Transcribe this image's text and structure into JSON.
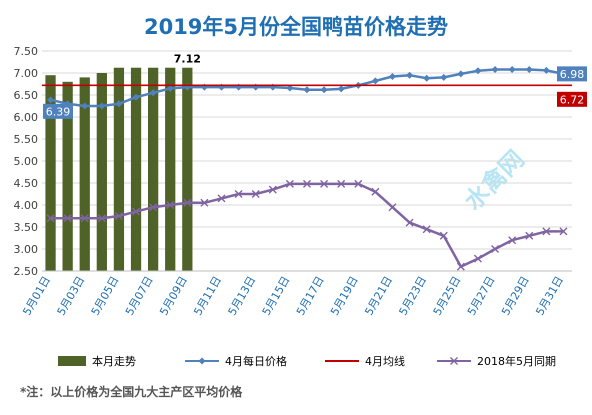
{
  "chart_data": {
    "type": "bar",
    "title": "2019年5月份全国鸭苗价格走势",
    "footnote": "*注：以上价格为全国九大主产区平均价格",
    "watermark": "水禽网",
    "ylim": [
      2.5,
      7.5
    ],
    "yticks": [
      "7.50",
      "7.00",
      "6.50",
      "6.00",
      "5.50",
      "5.00",
      "4.50",
      "4.00",
      "3.50",
      "3.00",
      "2.50"
    ],
    "x": [
      "5月01日",
      "5月02日",
      "5月03日",
      "5月04日",
      "5月05日",
      "5月06日",
      "5月07日",
      "5月08日",
      "5月09日",
      "5月10日",
      "5月11日",
      "5月12日",
      "5月13日",
      "5月14日",
      "5月15日",
      "5月16日",
      "5月17日",
      "5月18日",
      "5月19日",
      "5月20日",
      "5月21日",
      "5月22日",
      "5月23日",
      "5月24日",
      "5月25日",
      "5月26日",
      "5月27日",
      "5月28日",
      "5月29日",
      "5月30日",
      "5月31日"
    ],
    "x_tick_labels": [
      "5月01日",
      "5月03日",
      "5月05日",
      "5月07日",
      "5月09日",
      "5月11日",
      "5月13日",
      "5月15日",
      "5月17日",
      "5月19日",
      "5月21日",
      "5月23日",
      "5月25日",
      "5月27日",
      "5月29日",
      "5月31日"
    ],
    "series": [
      {
        "name": "本月走势",
        "kind": "bar",
        "color": "#4f6228",
        "values": [
          6.95,
          6.8,
          6.9,
          7.0,
          7.12,
          7.12,
          7.12,
          7.12,
          7.12,
          null,
          null,
          null,
          null,
          null,
          null,
          null,
          null,
          null,
          null,
          null,
          null,
          null,
          null,
          null,
          null,
          null,
          null,
          null,
          null,
          null,
          null
        ]
      },
      {
        "name": "4月每日价格",
        "kind": "line",
        "color": "#4f81bd",
        "values": [
          6.39,
          6.3,
          6.25,
          6.25,
          6.3,
          6.45,
          6.55,
          6.65,
          6.68,
          6.68,
          6.68,
          6.68,
          6.68,
          6.68,
          6.66,
          6.62,
          6.62,
          6.64,
          6.72,
          6.82,
          6.92,
          6.95,
          6.88,
          6.9,
          6.98,
          7.05,
          7.08,
          7.08,
          7.08,
          7.06,
          6.98
        ]
      },
      {
        "name": "4月均线",
        "kind": "line",
        "color": "#c00000",
        "values": [
          6.72,
          6.72,
          6.72,
          6.72,
          6.72,
          6.72,
          6.72,
          6.72,
          6.72,
          6.72,
          6.72,
          6.72,
          6.72,
          6.72,
          6.72,
          6.72,
          6.72,
          6.72,
          6.72,
          6.72,
          6.72,
          6.72,
          6.72,
          6.72,
          6.72,
          6.72,
          6.72,
          6.72,
          6.72,
          6.72,
          6.72
        ]
      },
      {
        "name": "2018年5月同期",
        "kind": "line",
        "color": "#8064a2",
        "values": [
          3.7,
          3.7,
          3.7,
          3.7,
          3.75,
          3.85,
          3.95,
          4.0,
          4.05,
          4.05,
          4.15,
          4.25,
          4.25,
          4.35,
          4.48,
          4.48,
          4.48,
          4.48,
          4.48,
          4.3,
          3.95,
          3.6,
          3.45,
          3.3,
          2.6,
          2.78,
          3.0,
          3.2,
          3.3,
          3.4,
          3.4
        ]
      }
    ],
    "data_labels": [
      {
        "series": "本月走势",
        "index": 8,
        "text": "7.12"
      },
      {
        "series": "4月每日价格",
        "index": 0,
        "text": "6.39"
      },
      {
        "series": "4月每日价格",
        "index": 30,
        "text": "6.98"
      },
      {
        "series": "4月均线",
        "index": 30,
        "text": "6.72"
      }
    ],
    "legend_position": "bottom",
    "grid": true
  }
}
